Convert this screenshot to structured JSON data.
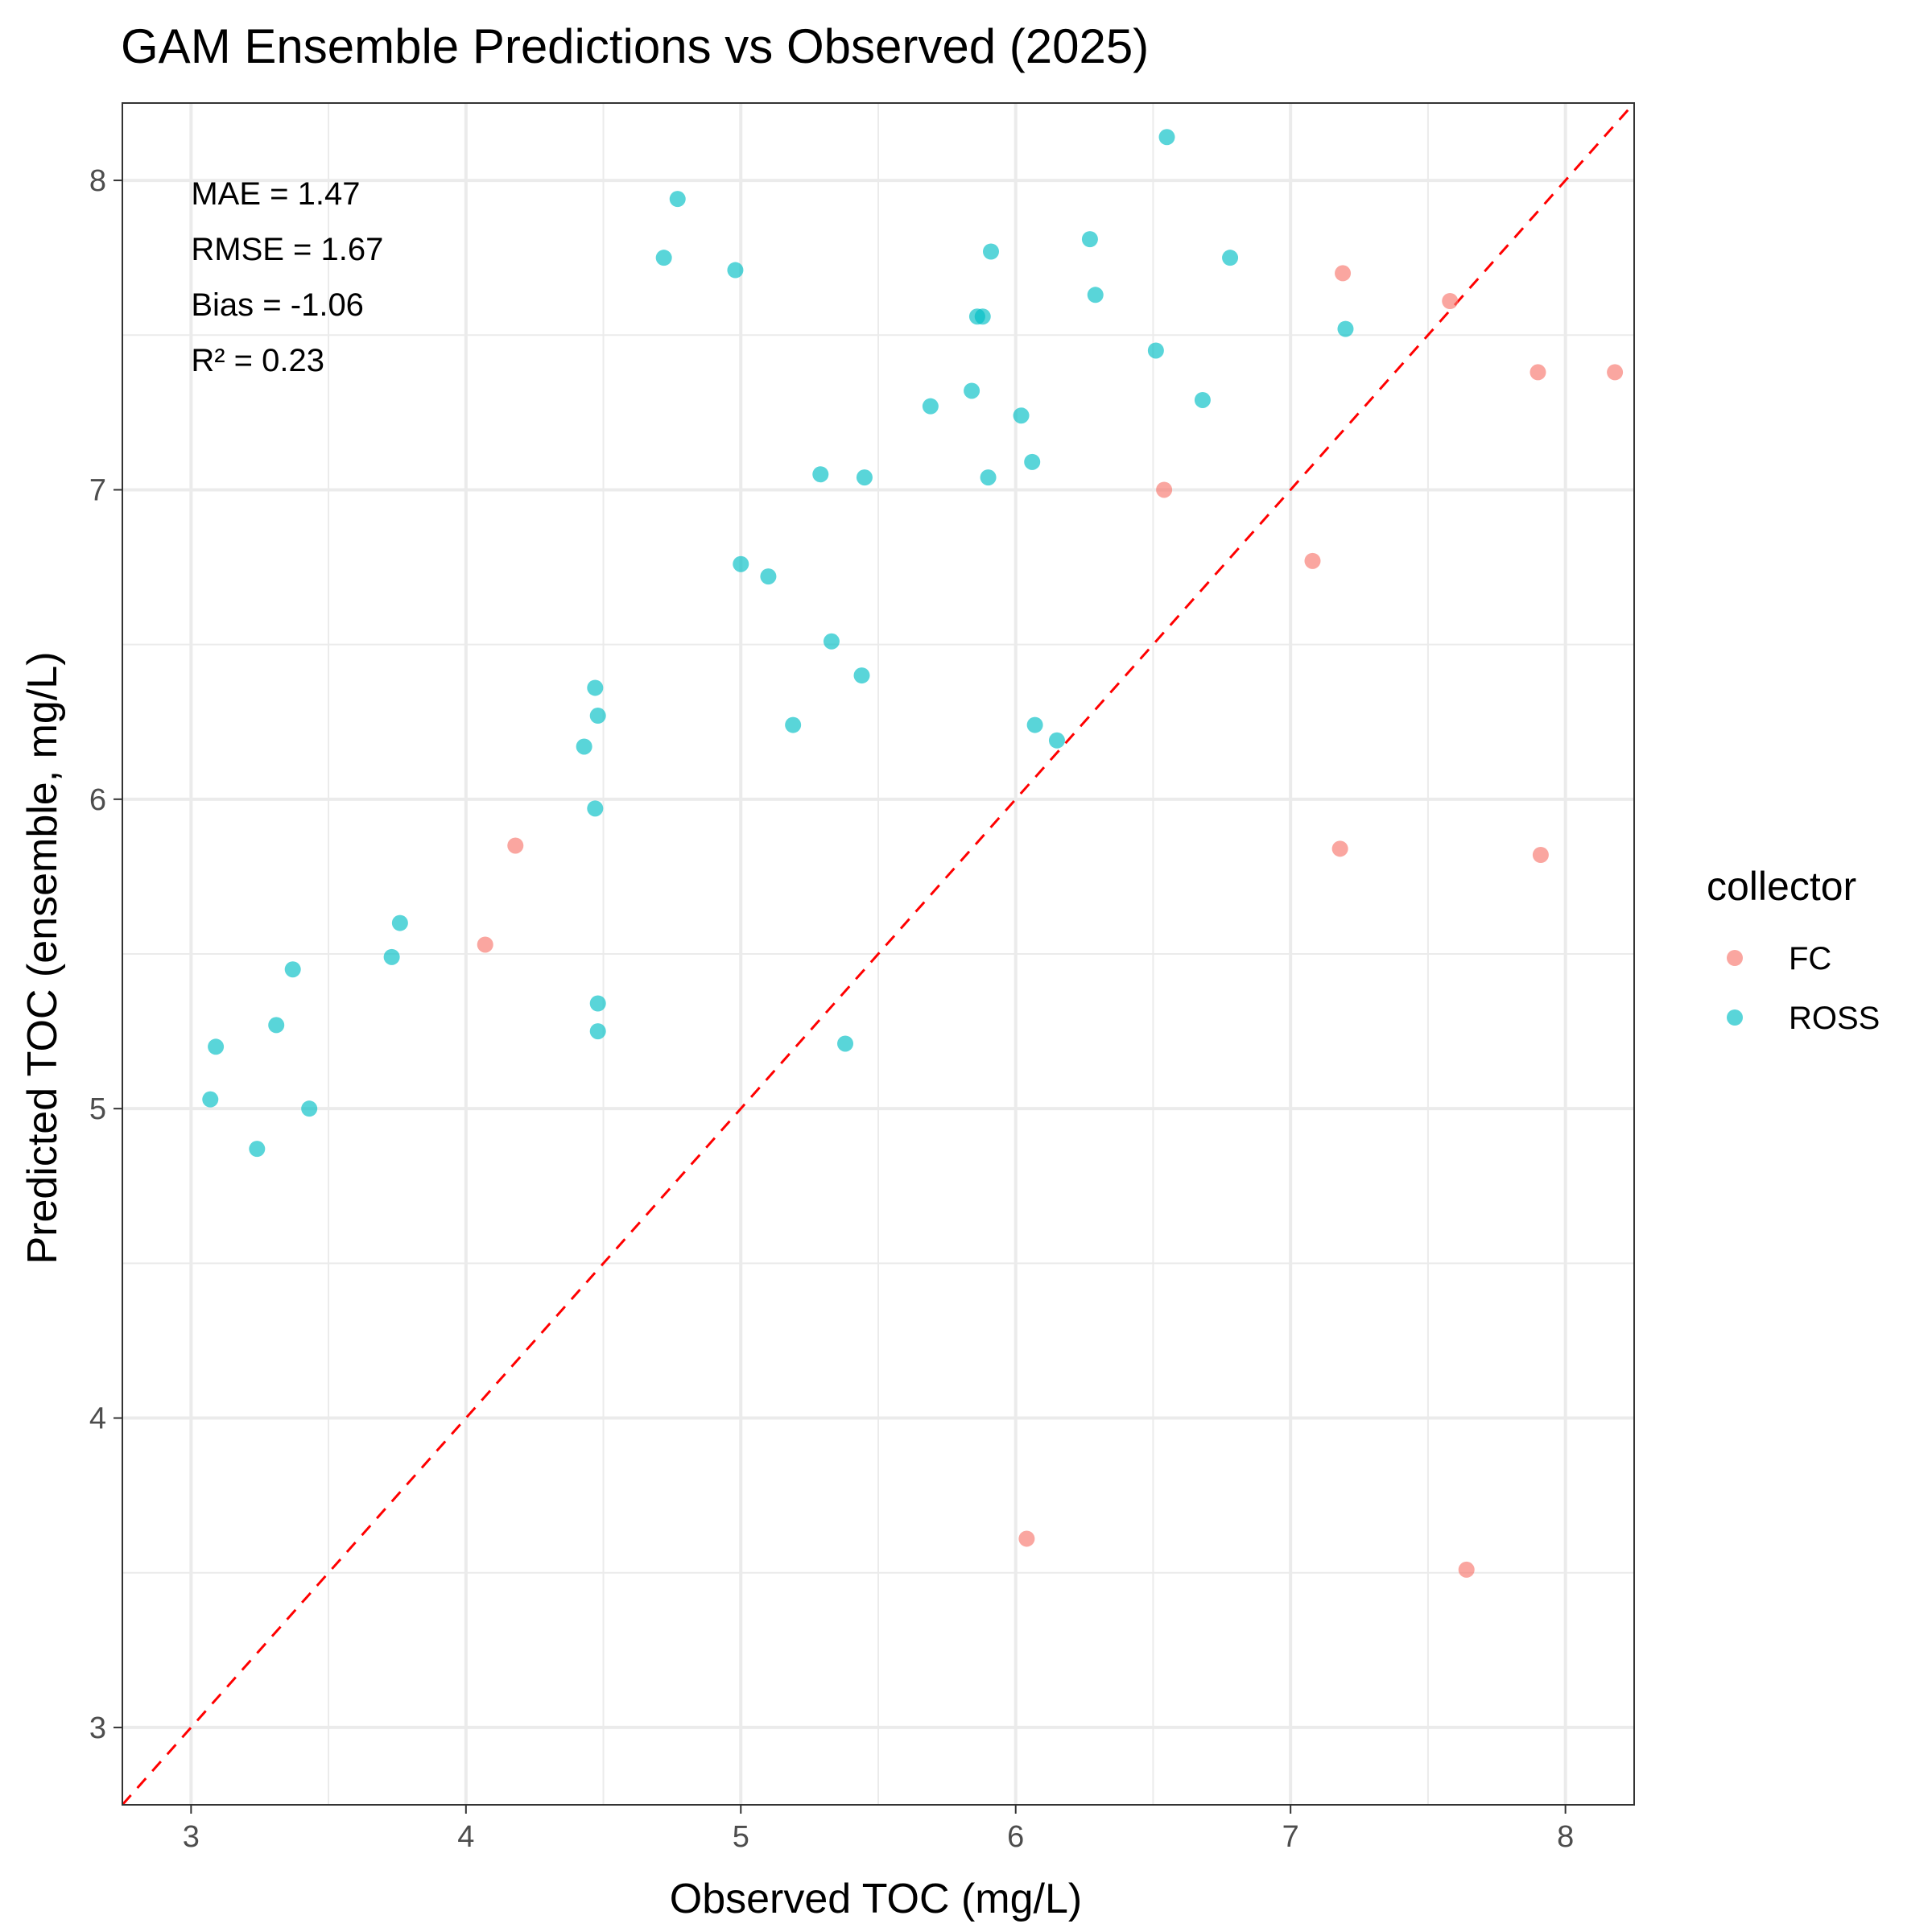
{
  "chart_data": {
    "type": "scatter",
    "title": "GAM Ensemble Predictions vs Observed (2025)",
    "xlabel": "Observed TOC (mg/L)",
    "ylabel": "Predicted TOC (ensemble, mg/L)",
    "xlim": [
      2.75,
      8.25
    ],
    "ylim": [
      2.75,
      8.25
    ],
    "x_ticks": [
      3,
      4,
      5,
      6,
      7,
      8
    ],
    "y_ticks": [
      3,
      4,
      5,
      6,
      7,
      8
    ],
    "grid": true,
    "reference_line": {
      "slope": 1,
      "intercept": 0,
      "color": "#ff0000",
      "style": "dashed"
    },
    "annotations": [
      "MAE = 1.47",
      "RMSE = 1.67",
      "Bias = -1.06",
      "R² = 0.23"
    ],
    "legend": {
      "title": "collector",
      "position": "right",
      "entries": [
        {
          "label": "FC",
          "color": "#f8766d"
        },
        {
          "label": "ROSS",
          "color": "#00bfc4"
        }
      ]
    },
    "series": [
      {
        "name": "FC",
        "color": "#f8766d",
        "points": [
          [
            4.07,
            5.53
          ],
          [
            4.18,
            5.85
          ],
          [
            6.04,
            3.61
          ],
          [
            6.54,
            7.0
          ],
          [
            7.08,
            6.77
          ],
          [
            7.18,
            5.84
          ],
          [
            7.19,
            7.7
          ],
          [
            7.58,
            7.61
          ],
          [
            7.64,
            3.51
          ],
          [
            7.9,
            7.38
          ],
          [
            7.91,
            5.82
          ],
          [
            8.18,
            7.38
          ]
        ]
      },
      {
        "name": "ROSS",
        "color": "#00bfc4",
        "points": [
          [
            3.07,
            5.03
          ],
          [
            3.09,
            5.2
          ],
          [
            3.24,
            4.87
          ],
          [
            3.31,
            5.27
          ],
          [
            3.37,
            5.45
          ],
          [
            3.43,
            5.0
          ],
          [
            3.73,
            5.49
          ],
          [
            3.76,
            5.6
          ],
          [
            4.43,
            6.17
          ],
          [
            4.47,
            5.97
          ],
          [
            4.47,
            6.36
          ],
          [
            4.48,
            6.27
          ],
          [
            4.48,
            5.34
          ],
          [
            4.48,
            5.25
          ],
          [
            4.72,
            7.75
          ],
          [
            4.77,
            7.94
          ],
          [
            4.98,
            7.71
          ],
          [
            5.0,
            6.76
          ],
          [
            5.1,
            6.72
          ],
          [
            5.19,
            6.24
          ],
          [
            5.29,
            7.05
          ],
          [
            5.33,
            6.51
          ],
          [
            5.38,
            5.21
          ],
          [
            5.44,
            6.4
          ],
          [
            5.45,
            7.04
          ],
          [
            5.69,
            7.27
          ],
          [
            5.84,
            7.32
          ],
          [
            5.86,
            7.56
          ],
          [
            5.88,
            7.56
          ],
          [
            5.9,
            7.04
          ],
          [
            5.91,
            7.77
          ],
          [
            6.02,
            7.24
          ],
          [
            6.06,
            7.09
          ],
          [
            6.07,
            6.24
          ],
          [
            6.15,
            6.19
          ],
          [
            6.27,
            7.81
          ],
          [
            6.29,
            7.63
          ],
          [
            6.51,
            7.45
          ],
          [
            6.55,
            8.14
          ],
          [
            6.68,
            7.29
          ],
          [
            6.78,
            7.75
          ],
          [
            7.2,
            7.52
          ]
        ]
      }
    ]
  }
}
